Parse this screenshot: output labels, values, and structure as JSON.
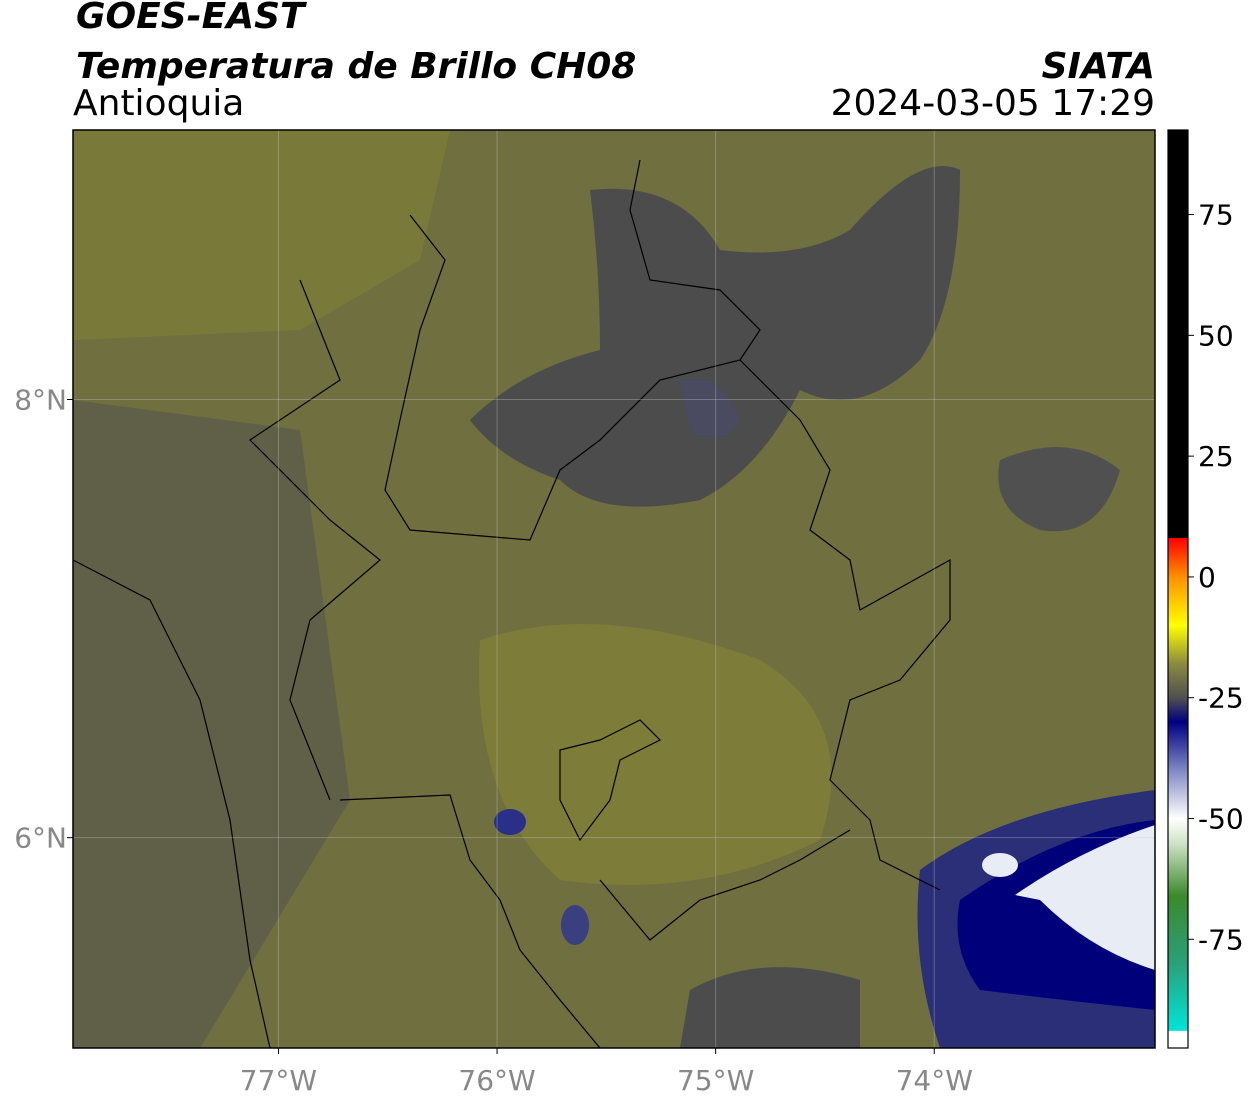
{
  "chart_data": {
    "type": "map",
    "title": "GOES-EAST",
    "subtitle": "Temperatura de Brillo CH08",
    "region": "Antioquia",
    "source": "SIATA",
    "timestamp": "2024-03-05 17:29",
    "xlim": [
      -77.94,
      -72.99
    ],
    "ylim": [
      5.04,
      9.23
    ],
    "xticks": [
      {
        "value": -77,
        "label": "77°W"
      },
      {
        "value": -76,
        "label": "76°W"
      },
      {
        "value": -75,
        "label": "75°W"
      },
      {
        "value": -74,
        "label": "74°W"
      }
    ],
    "yticks": [
      {
        "value": 6,
        "label": "6°N"
      },
      {
        "value": 8,
        "label": "8°N"
      }
    ],
    "grid": true,
    "clim": [
      -97.5,
      92.5
    ],
    "cticks": [
      75,
      50,
      25,
      0,
      -25,
      -50,
      -75
    ],
    "colormap": [
      {
        "value": -97.5,
        "color": "#ffffff"
      },
      {
        "value": -94,
        "color": "#ffffff"
      },
      {
        "value": -93.9,
        "color": "#00e5d8"
      },
      {
        "value": -80,
        "color": "#2aa07a"
      },
      {
        "value": -66,
        "color": "#3a8a2a"
      },
      {
        "value": -55,
        "color": "#d0e4c8"
      },
      {
        "value": -50,
        "color": "#ffffff"
      },
      {
        "value": -40,
        "color": "#8088c4"
      },
      {
        "value": -30,
        "color": "#000080"
      },
      {
        "value": -25,
        "color": "#505050"
      },
      {
        "value": -18,
        "color": "#8a8a40"
      },
      {
        "value": -10,
        "color": "#ffff00"
      },
      {
        "value": 0,
        "color": "#ff9000"
      },
      {
        "value": 8,
        "color": "#ff0000"
      },
      {
        "value": 8.1,
        "color": "#000000"
      },
      {
        "value": 92.5,
        "color": "#000000"
      }
    ]
  }
}
